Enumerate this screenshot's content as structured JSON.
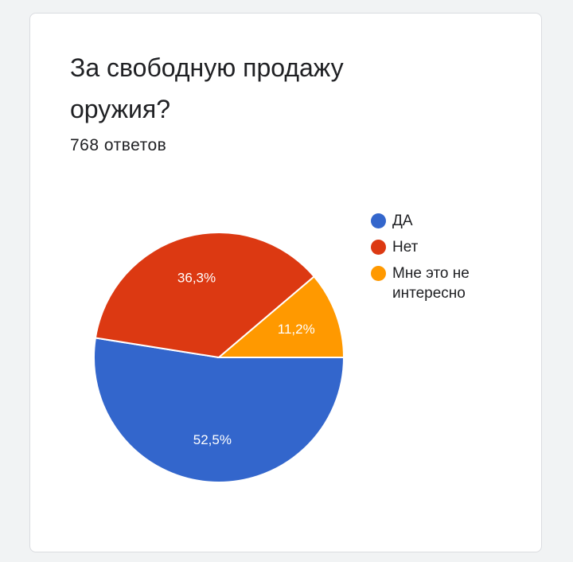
{
  "card": {
    "title": "За свободную продажу оружия?",
    "responses": "768 ответов"
  },
  "chart_data": {
    "type": "pie",
    "categories": [
      "ДА",
      "Нет",
      "Мне это не интересно"
    ],
    "values": [
      52.5,
      36.3,
      11.2
    ],
    "labels": [
      "52,5%",
      "36,3%",
      "11,2%"
    ],
    "colors": [
      "#3366cc",
      "#dc3912",
      "#ff9900"
    ],
    "legend_placement": "right"
  }
}
